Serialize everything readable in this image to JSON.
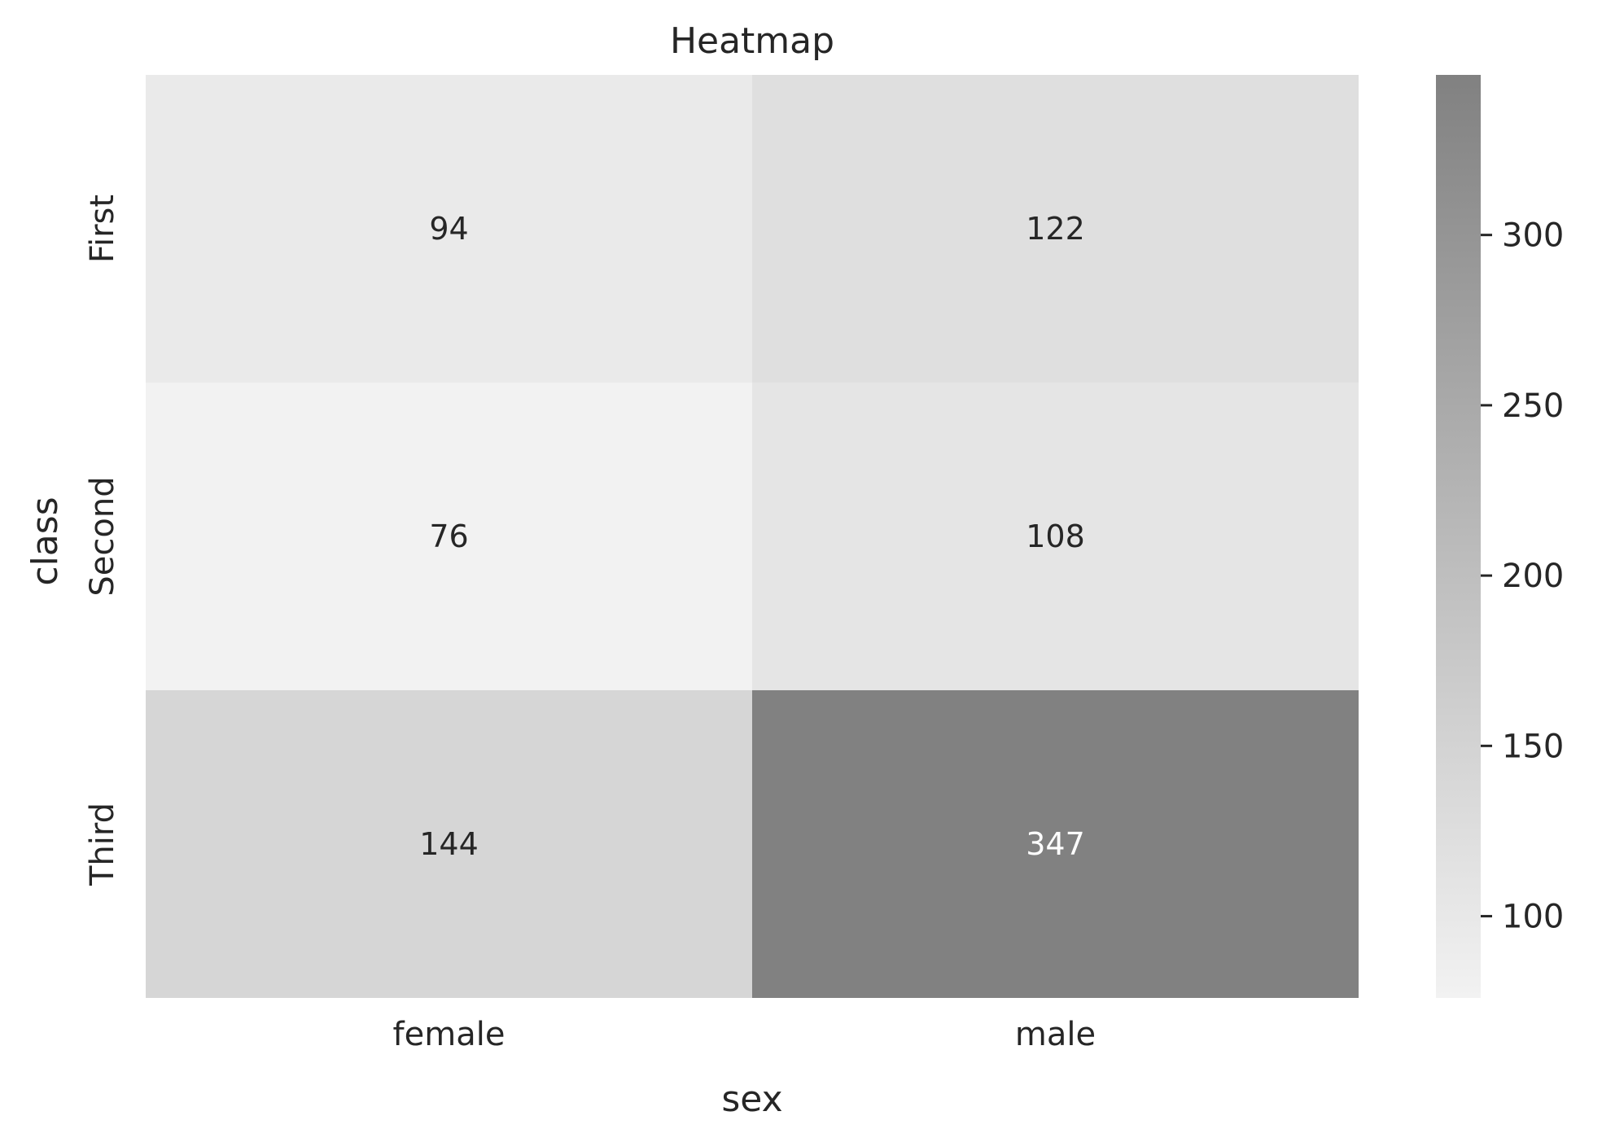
{
  "chart_data": {
    "type": "heatmap",
    "title": "Heatmap",
    "xlabel": "sex",
    "ylabel": "class",
    "x_categories": [
      "female",
      "male"
    ],
    "y_categories": [
      "First",
      "Second",
      "Third"
    ],
    "values": [
      [
        94,
        122
      ],
      [
        76,
        108
      ],
      [
        144,
        347
      ]
    ],
    "colorbar": {
      "min": 76,
      "max": 347,
      "ticks": [
        100,
        150,
        200,
        250,
        300
      ],
      "color_low": "#f2f2f2",
      "color_high": "#818181"
    },
    "grid": false
  }
}
